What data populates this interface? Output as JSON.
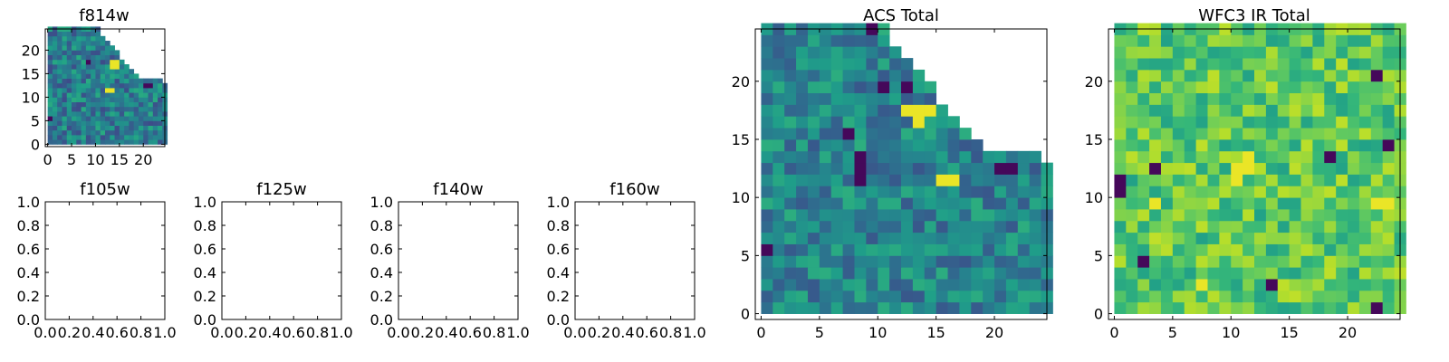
{
  "chart_data": [
    {
      "id": "f814w",
      "type": "heatmap",
      "title": "f814w",
      "xlim": [
        -0.5,
        24.5
      ],
      "ylim": [
        -0.5,
        24.5
      ],
      "xticks": [
        0,
        5,
        10,
        15,
        20
      ],
      "yticks": [
        0,
        5,
        10,
        15,
        20
      ],
      "grid": false,
      "colormap": "viridis",
      "bright_cells": [
        [
          13,
          17
        ],
        [
          14,
          17
        ],
        [
          13,
          16
        ],
        [
          14,
          16
        ],
        [
          12,
          11
        ],
        [
          13,
          11
        ]
      ],
      "dark_cells": [
        [
          20,
          12
        ],
        [
          21,
          12
        ],
        [
          0,
          5
        ],
        [
          8,
          17
        ]
      ]
    },
    {
      "id": "f105w",
      "type": "empty",
      "title": "f105w",
      "xlim": [
        0,
        1
      ],
      "ylim": [
        0,
        1
      ],
      "xticks": [
        "0.0",
        "0.2",
        "0.4",
        "0.6",
        "0.8",
        "1.0"
      ],
      "yticks": [
        "0.0",
        "0.2",
        "0.4",
        "0.6",
        "0.8",
        "1.0"
      ],
      "grid": false
    },
    {
      "id": "f125w",
      "type": "empty",
      "title": "f125w",
      "xlim": [
        0,
        1
      ],
      "ylim": [
        0,
        1
      ],
      "xticks": [
        "0.0",
        "0.2",
        "0.4",
        "0.6",
        "0.8",
        "1.0"
      ],
      "yticks": [
        "0.0",
        "0.2",
        "0.4",
        "0.6",
        "0.8",
        "1.0"
      ],
      "grid": false
    },
    {
      "id": "f140w",
      "type": "empty",
      "title": "f140w",
      "xlim": [
        0,
        1
      ],
      "ylim": [
        0,
        1
      ],
      "xticks": [
        "0.0",
        "0.2",
        "0.4",
        "0.6",
        "0.8",
        "1.0"
      ],
      "yticks": [
        "0.0",
        "0.2",
        "0.4",
        "0.6",
        "0.8",
        "1.0"
      ],
      "grid": false
    },
    {
      "id": "f160w",
      "type": "empty",
      "title": "f160w",
      "xlim": [
        0,
        1
      ],
      "ylim": [
        0,
        1
      ],
      "xticks": [
        "0.0",
        "0.2",
        "0.4",
        "0.6",
        "0.8",
        "1.0"
      ],
      "yticks": [
        "0.0",
        "0.2",
        "0.4",
        "0.6",
        "0.8",
        "1.0"
      ],
      "grid": false
    },
    {
      "id": "acs-total",
      "type": "heatmap",
      "title": "ACS Total",
      "xlim": [
        -0.5,
        24.5
      ],
      "ylim": [
        -0.5,
        24.5
      ],
      "xticks": [
        0,
        5,
        10,
        15,
        20
      ],
      "yticks": [
        0,
        5,
        10,
        15,
        20
      ],
      "grid": false,
      "colormap": "viridis",
      "bright_cells": [
        [
          12,
          17
        ],
        [
          13,
          17
        ],
        [
          14,
          17
        ],
        [
          13,
          16
        ],
        [
          15,
          11
        ],
        [
          16,
          11
        ]
      ],
      "dark_cells": [
        [
          9,
          24
        ],
        [
          10,
          19
        ],
        [
          12,
          19
        ],
        [
          7,
          15
        ],
        [
          8,
          13
        ],
        [
          8,
          12
        ],
        [
          8,
          11
        ],
        [
          0,
          5
        ],
        [
          20,
          12
        ],
        [
          21,
          12
        ]
      ]
    },
    {
      "id": "wfc3-ir-total",
      "type": "heatmap",
      "title": "WFC3 IR Total",
      "xlim": [
        -0.5,
        24.5
      ],
      "ylim": [
        -0.5,
        24.5
      ],
      "xticks": [
        0,
        5,
        10,
        15,
        20
      ],
      "yticks": [
        0,
        5,
        10,
        15,
        20
      ],
      "grid": false,
      "colormap": "viridis",
      "bright_cells": [
        [
          10,
          12
        ],
        [
          11,
          12
        ],
        [
          10,
          11
        ],
        [
          22,
          9
        ],
        [
          23,
          9
        ],
        [
          3,
          9
        ],
        [
          11,
          13
        ],
        [
          7,
          2
        ]
      ],
      "dark_cells": [
        [
          3,
          12
        ],
        [
          0,
          11
        ],
        [
          0,
          10
        ],
        [
          2,
          4
        ],
        [
          13,
          2
        ],
        [
          22,
          0
        ],
        [
          22,
          20
        ],
        [
          18,
          13
        ],
        [
          23,
          14
        ]
      ]
    }
  ]
}
